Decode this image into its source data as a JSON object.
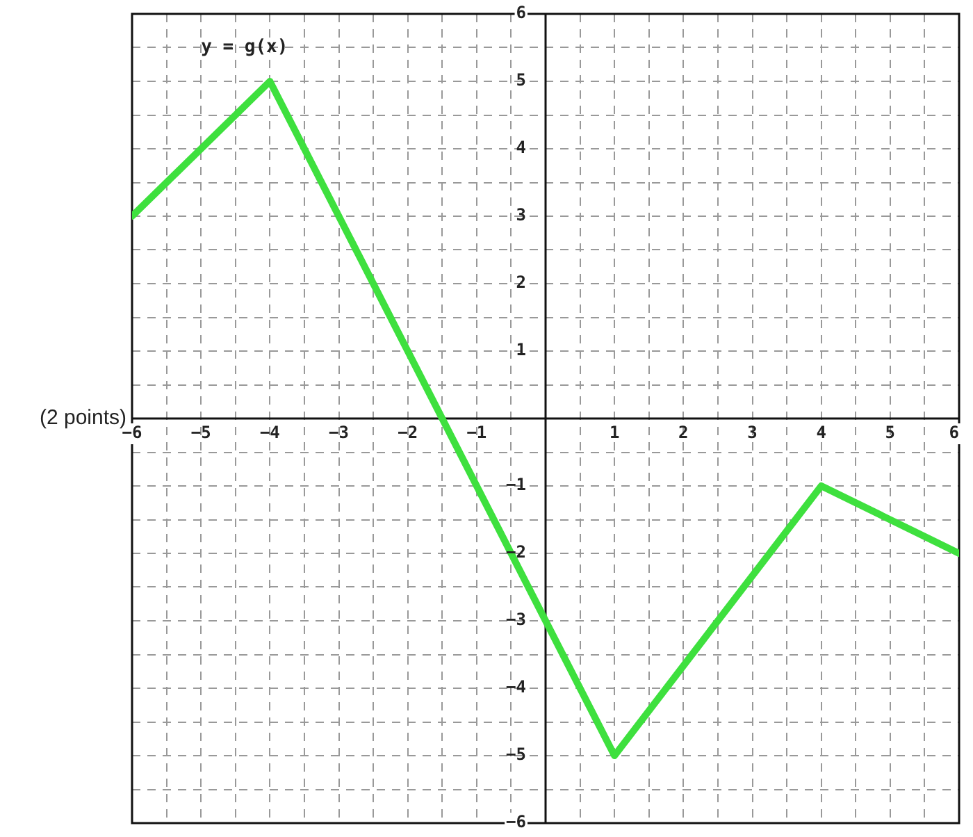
{
  "chart_data": {
    "type": "line",
    "annotations": [
      "y = g(x)",
      "(2 points)"
    ],
    "x": [
      -6,
      -4,
      1,
      4,
      6
    ],
    "series": [
      {
        "color": "#3ee03e",
        "values": [
          3,
          5,
          -5,
          -1,
          -2
        ]
      }
    ],
    "xlim": [
      -6,
      6
    ],
    "ylim": [
      -6,
      6
    ],
    "xticks": [
      -6,
      {
        "value": -5.5,
        "label": null
      },
      -5,
      {
        "value": -4.5,
        "label": null
      },
      -4,
      {
        "value": -3.5,
        "label": null
      },
      -3,
      {
        "value": -2.5,
        "label": null
      },
      -2,
      {
        "value": -1.5,
        "label": null
      },
      -1,
      {
        "value": -0.5,
        "label": null
      },
      {
        "value": 0,
        "label": null
      },
      {
        "value": 0.5,
        "label": null
      },
      1,
      {
        "value": 1.5,
        "label": null
      },
      2,
      {
        "value": 2.5,
        "label": null
      },
      3,
      {
        "value": 3.5,
        "label": null
      },
      4,
      {
        "value": 4.5,
        "label": null
      },
      5,
      {
        "value": 5.5,
        "label": null
      },
      6
    ],
    "yticks": [
      -6,
      {
        "value": -5.5,
        "label": null
      },
      -5,
      {
        "value": -4.5,
        "label": null
      },
      -4,
      {
        "value": -3.5,
        "label": null
      },
      -3,
      {
        "value": -2.5,
        "label": null
      },
      -2,
      {
        "value": -1.5,
        "label": null
      },
      -1,
      {
        "value": -0.5,
        "label": null
      },
      {
        "value": 0,
        "label": null
      },
      {
        "value": 0.5,
        "label": null
      },
      1,
      {
        "value": 1.5,
        "label": null
      },
      2,
      {
        "value": 2.5,
        "label": null
      },
      3,
      {
        "value": 3.5,
        "label": null
      },
      4,
      {
        "value": 4.5,
        "label": null
      },
      5,
      {
        "value": 5.5,
        "label": null
      },
      6
    ],
    "grid": true,
    "legend": false,
    "marker": "none",
    "line_style": "solid"
  }
}
